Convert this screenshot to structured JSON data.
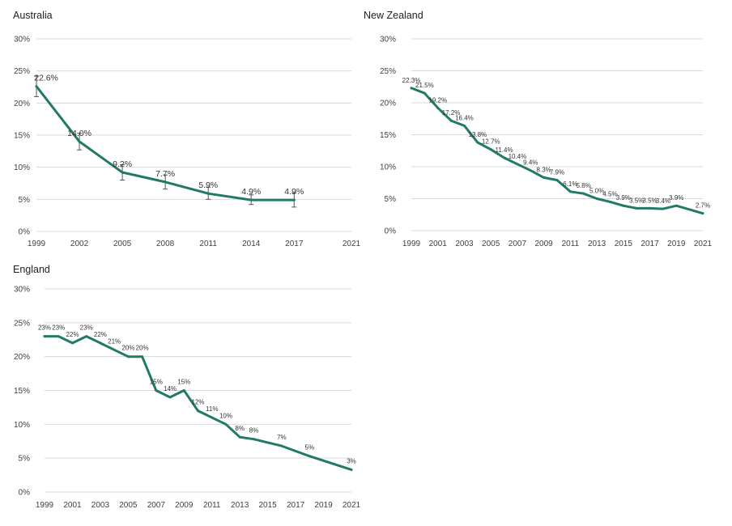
{
  "chart_data": [
    {
      "type": "line",
      "title": "Australia",
      "x": [
        1999,
        2002,
        2005,
        2008,
        2011,
        2014,
        2017
      ],
      "values": [
        22.6,
        14.0,
        9.2,
        7.7,
        5.9,
        4.9,
        4.9
      ],
      "labels": [
        "22.6%",
        "14.0%",
        "9.2%",
        "7.7%",
        "5.9%",
        "4.9%",
        "4.9%"
      ],
      "error_low": [
        21.0,
        12.7,
        8.0,
        6.6,
        5.0,
        4.2,
        3.8
      ],
      "error_high": [
        24.2,
        15.3,
        10.4,
        8.8,
        6.9,
        5.7,
        6.0
      ],
      "xticks": [
        "1999",
        "2002",
        "2005",
        "2008",
        "2011",
        "2014",
        "2017",
        "2021"
      ],
      "xlim": [
        1999,
        2021
      ],
      "yticks": [
        "0%",
        "5%",
        "10%",
        "15%",
        "20%",
        "25%",
        "30%"
      ],
      "ylim": [
        0,
        30
      ],
      "grid": true,
      "color": "#217a66"
    },
    {
      "type": "line",
      "title": "New Zealand",
      "x": [
        1999,
        2000,
        2001,
        2002,
        2003,
        2004,
        2005,
        2006,
        2007,
        2008,
        2009,
        2010,
        2011,
        2012,
        2013,
        2014,
        2015,
        2016,
        2017,
        2018,
        2019,
        2021
      ],
      "values": [
        22.3,
        21.5,
        19.2,
        17.2,
        16.4,
        13.8,
        12.7,
        11.4,
        10.4,
        9.4,
        8.3,
        7.9,
        6.1,
        5.8,
        5.0,
        4.5,
        3.9,
        3.5,
        3.5,
        3.4,
        3.9,
        2.7
      ],
      "labels": [
        "22.3%",
        "21.5%",
        "19.2%",
        "17.2%",
        "16.4%",
        "13.8%",
        "12.7%",
        "11.4%",
        "10.4%",
        "9.4%",
        "8.3%",
        "7.9%",
        "6.1%",
        "5.8%",
        "5.0%",
        "4.5%",
        "3.9%",
        "3.5%",
        "3.5%",
        "3.4%",
        "3.9%",
        "2.7%"
      ],
      "xticks": [
        "1999",
        "2001",
        "2003",
        "2005",
        "2007",
        "2009",
        "2011",
        "2013",
        "2015",
        "2017",
        "2019",
        "2021"
      ],
      "xlim": [
        1999,
        2021
      ],
      "yticks": [
        "0%",
        "5%",
        "10%",
        "15%",
        "20%",
        "25%",
        "30%"
      ],
      "ylim": [
        0,
        30
      ],
      "grid": true,
      "color": "#217a66"
    },
    {
      "type": "line",
      "title": "England",
      "x": [
        1999,
        2000,
        2001,
        2002,
        2003,
        2004,
        2005,
        2006,
        2007,
        2008,
        2009,
        2010,
        2011,
        2012,
        2013,
        2014,
        2016,
        2018,
        2021
      ],
      "values": [
        23,
        23,
        22,
        23,
        22,
        21,
        20,
        20,
        15,
        14,
        15,
        12,
        11,
        10,
        8.1,
        7.8,
        6.8,
        5.3,
        3.3
      ],
      "labels": [
        "23%",
        "23%",
        "22%",
        "23%",
        "22%",
        "21%",
        "20%",
        "20%",
        "15%",
        "14%",
        "15%",
        "12%",
        "11%",
        "10%",
        "8%",
        "8%",
        "7%",
        "5%",
        "3%"
      ],
      "xticks": [
        "1999",
        "2001",
        "2003",
        "2005",
        "2007",
        "2009",
        "2011",
        "2013",
        "2015",
        "2017",
        "2019",
        "2021"
      ],
      "xlim": [
        1999,
        2021
      ],
      "yticks": [
        "0%",
        "5%",
        "10%",
        "15%",
        "20%",
        "25%",
        "30%"
      ],
      "ylim": [
        0,
        30
      ],
      "grid": true,
      "color": "#217a66"
    }
  ]
}
